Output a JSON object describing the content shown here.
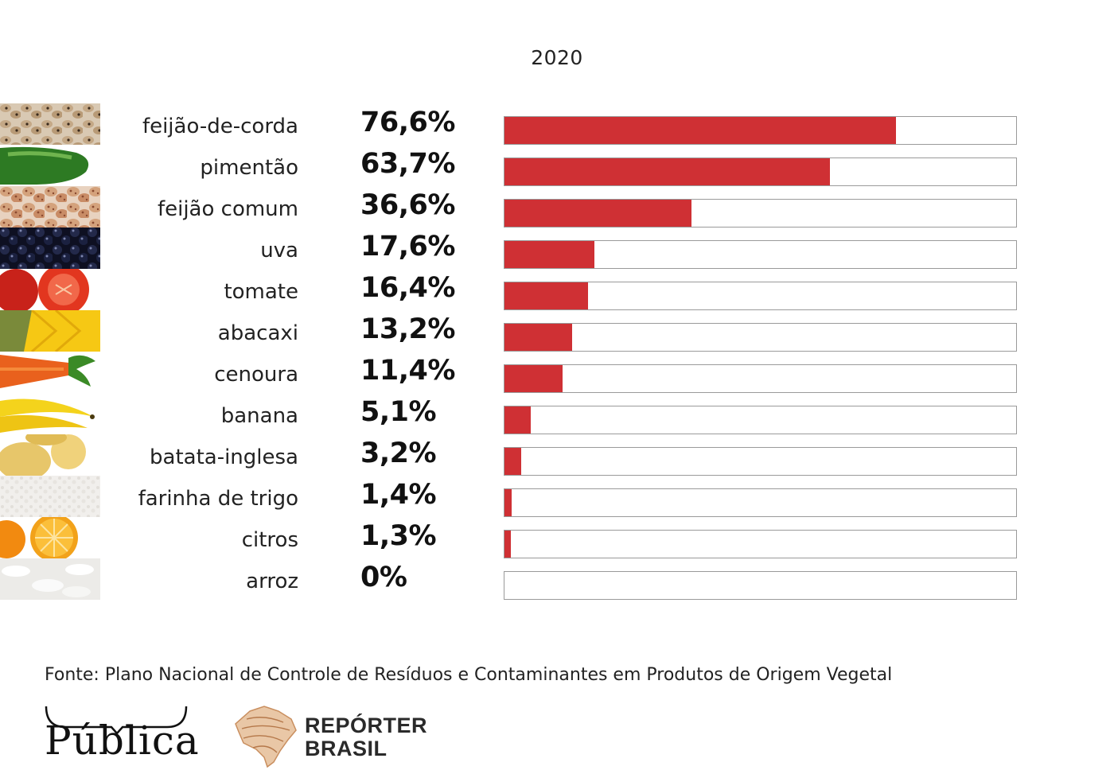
{
  "chart_data": {
    "type": "bar",
    "orientation": "horizontal",
    "title": "2020",
    "categories": [
      "feijão-de-corda",
      "pimentão",
      "feijão comum",
      "uva",
      "tomate",
      "abacaxi",
      "cenoura",
      "banana",
      "batata-inglesa",
      "farinha de trigo",
      "citros",
      "arroz"
    ],
    "value_labels": [
      "76,6%",
      "63,7%",
      "36,6%",
      "17,6%",
      "16,4%",
      "13,2%",
      "11,4%",
      "5,1%",
      "3,2%",
      "1,4%",
      "1,3%",
      "0%"
    ],
    "values": [
      76.6,
      63.7,
      36.6,
      17.6,
      16.4,
      13.2,
      11.4,
      5.1,
      3.2,
      1.4,
      1.3,
      0
    ],
    "xlim": [
      0,
      100
    ],
    "grid": false,
    "bar_color": "#cf3034",
    "track_border_color": "#9a9a9a"
  },
  "thumbnails": [
    "cowpea-beans",
    "green-pepper",
    "common-beans",
    "grapes",
    "tomato",
    "pineapple",
    "carrot",
    "banana",
    "potato",
    "wheat-flour",
    "orange",
    "rice"
  ],
  "source": "Fonte: Plano Nacional de Controle de Resíduos e Contaminantes em Produtos de Origem Vegetal",
  "logos": {
    "publica": "Pública",
    "reporter_line1": "REPÓRTER",
    "reporter_line2": "BRASIL"
  }
}
